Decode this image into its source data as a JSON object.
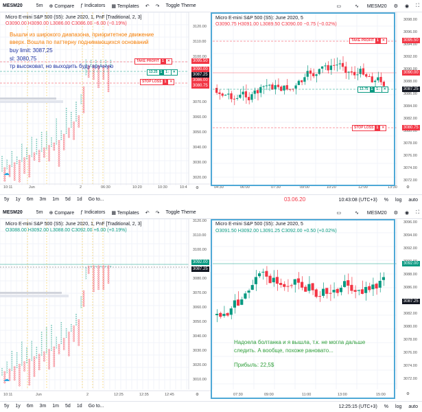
{
  "top": {
    "toolbar": {
      "symbol": "MESM20",
      "interval": "5m",
      "compare": "Compare",
      "indicators": "Indicators",
      "templates": "Templates",
      "toggle_theme": "Toggle Theme",
      "right_symbol": "MESM20"
    },
    "left_chart": {
      "legend": "Micro E-mini S&P 500 (S5): June 2020, 1, PnF [Traditional, 2, 3]",
      "values": "O3090.00  H3090.00  L3086.00  C3086.00  −6.00 (−0.19%)",
      "annotation_line1": "Вышли из широкого диапазона, приоритетное движение",
      "annotation_line2": "вверх. Вошла по паттерну поднимающихся оснований",
      "buy_limit": "buy limit: 3087,25",
      "sl": "sl: 3080,75",
      "tp": "тр высоковат, но выходить буду вручную",
      "take_profit_label": "TAKE PROFIT",
      "take_profit_qty": "1",
      "buy_label": "13.25",
      "buy_qty": "1",
      "stop_loss_label": "STOP LOSS",
      "stop_loss_qty": "1",
      "price_axis": [
        "3120.00",
        "3110.00",
        "3100.00",
        "3090.00",
        "3080.00",
        "3070.00",
        "3060.00",
        "3050.00",
        "3040.00",
        "3030.00",
        "3020.00"
      ],
      "price_tags": {
        "tp": "3095.50",
        "cur": "3090.00",
        "buy": "3087.25",
        "sl": "3086.00",
        "sl2": "3080.75"
      },
      "time_axis": [
        "10:11",
        "Jun",
        "2",
        "06:30",
        "10:20",
        "10:30",
        "10:4"
      ]
    },
    "right_chart": {
      "legend": "Micro E-mini S&P 500 (S5): June 2020, 5",
      "values": "O3090.75  H3091.00  L3089.50  C3090.00  −0.75 (−0.02%)",
      "take_profit_label": "TAKE PROFIT",
      "take_profit_qty": "1",
      "buy_label": "13.75",
      "buy_qty": "1",
      "stop_loss_label": "STOP LOSS",
      "stop_loss_qty": "1",
      "price_axis": [
        "3098.00",
        "3096.00",
        "3094.00",
        "3092.00",
        "3090.00",
        "3088.00",
        "3086.00",
        "3084.00",
        "3082.00",
        "3080.00",
        "3078.00",
        "3076.00",
        "3074.00",
        "3072.00"
      ],
      "price_tags": {
        "tp": "3095.50",
        "cur": "3090.00",
        "buy": "3087.25",
        "sl": "3080.75"
      },
      "time_axis": [
        "04:30",
        "06:00",
        "07:30",
        "09:00",
        "10:20",
        "12:00",
        "13:30"
      ]
    },
    "bottombar": {
      "ranges": [
        "5y",
        "1y",
        "6m",
        "3m",
        "1m",
        "5d",
        "1d"
      ],
      "goto": "Go to...",
      "date": "03.06.20",
      "time": "10:43:08 (UTC+3)",
      "pct": "%",
      "log": "log",
      "auto": "auto"
    }
  },
  "bottom": {
    "toolbar": {
      "symbol": "MESM20",
      "interval": "5m",
      "compare": "Compare",
      "indicators": "Indicators",
      "templates": "Templates",
      "toggle_theme": "Toggle Theme",
      "right_symbol": "MESM20"
    },
    "left_chart": {
      "legend": "Micro E-mini S&P 500 (S5): June 2020, 1, PnF [Traditional, 2, 3]",
      "values": "O3088.00  H3092.00  L3088.00  C3092.00  +6.00 (+0.19%)",
      "price_axis": [
        "3120.00",
        "3110.00",
        "3100.00",
        "3090.00",
        "3080.00",
        "3070.00",
        "3060.00",
        "3050.00",
        "3040.00",
        "3030.00",
        "3020.00",
        "3010.00"
      ],
      "price_tags": {
        "cur": "3092.00",
        "buy": "3087.25"
      },
      "time_axis": [
        "10:11",
        "Jun",
        "2",
        "12:25",
        "12:35",
        "12:45"
      ]
    },
    "right_chart": {
      "legend": "Micro E-mini S&P 500 (S5): June 2020, 5",
      "values": "O3091.50  H3092.00  L3091.25  C3092.00  +0.50 (+0.02%)",
      "note": "Надоела болтанка и я вышла, т.к. не могла дальше",
      "note2": "следить. А вообще, похоже рановато...",
      "profit": "Прибыль: 22,5$",
      "price_axis": [
        "3096.00",
        "3094.00",
        "3092.00",
        "3090.00",
        "3088.00",
        "3086.00",
        "3084.00",
        "3082.00",
        "3080.00",
        "3078.00",
        "3076.00",
        "3074.00",
        "3072.00"
      ],
      "price_tags": {
        "cur": "3092.00",
        "buy": "3087.25"
      },
      "time_axis": [
        "07:30",
        "09:00",
        "11:00",
        "13:00",
        "15:00"
      ]
    },
    "bottombar": {
      "ranges": [
        "5y",
        "1y",
        "6m",
        "3m",
        "1m",
        "5d",
        "1d"
      ],
      "goto": "Go to...",
      "time": "12:25:15 (UTC+3)",
      "pct": "%",
      "log": "log",
      "auto": "auto"
    }
  },
  "colors": {
    "up": "#089981",
    "down": "#f23645",
    "accent": "#4ea8d6",
    "grid": "#f0f3fa",
    "text": "#131722",
    "annotation_orange": "#f57c00",
    "annotation_blue": "#1a2fa0",
    "note_green": "#2e9e3a"
  }
}
